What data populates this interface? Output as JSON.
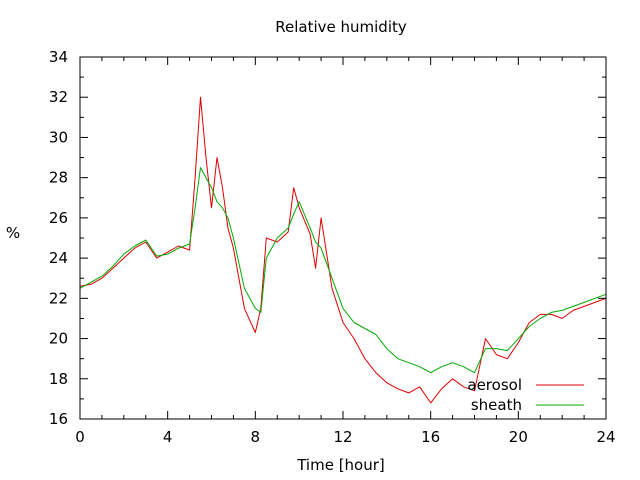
{
  "chart_data": {
    "type": "line",
    "title": "Relative humidity",
    "xlabel": "Time [hour]",
    "ylabel": "%",
    "xlim": [
      0,
      24
    ],
    "ylim": [
      16,
      34
    ],
    "xticks": [
      0,
      4,
      8,
      12,
      16,
      20,
      24
    ],
    "yticks": [
      16,
      18,
      20,
      22,
      24,
      26,
      28,
      30,
      32,
      34
    ],
    "grid": false,
    "legend_position": "bottom-right",
    "series": [
      {
        "name": "aerosol",
        "color": "#dd0000",
        "x": [
          0,
          0.5,
          1,
          1.5,
          2,
          2.5,
          3,
          3.5,
          4,
          4.5,
          5,
          5.25,
          5.5,
          5.75,
          6,
          6.25,
          6.5,
          6.75,
          7,
          7.5,
          8,
          8.25,
          8.5,
          9,
          9.5,
          9.75,
          10,
          10.5,
          10.75,
          11,
          11.5,
          12,
          12.5,
          13,
          13.5,
          14,
          14.5,
          15,
          15.5,
          16,
          16.5,
          17,
          17.5,
          18,
          18.5,
          19,
          19.5,
          20,
          20.5,
          21,
          21.5,
          22,
          22.5,
          23,
          23.5,
          24
        ],
        "y": [
          22.6,
          22.7,
          23.0,
          23.5,
          24.0,
          24.5,
          24.8,
          24.0,
          24.3,
          24.6,
          24.4,
          28.0,
          32.0,
          29.0,
          26.5,
          29.0,
          27.5,
          25.5,
          24.5,
          21.5,
          20.3,
          21.5,
          25.0,
          24.8,
          25.3,
          27.5,
          26.5,
          25.2,
          23.5,
          26.0,
          22.5,
          20.8,
          20.0,
          19.0,
          18.3,
          17.8,
          17.5,
          17.3,
          17.6,
          16.8,
          17.5,
          18.0,
          17.6,
          17.4,
          20.0,
          19.2,
          19.0,
          19.8,
          20.8,
          21.2,
          21.2,
          21.0,
          21.4,
          21.6,
          21.8,
          22.0
        ]
      },
      {
        "name": "sheath",
        "color": "#00aa00",
        "x": [
          0,
          0.5,
          1,
          1.5,
          2,
          2.5,
          3,
          3.5,
          4,
          4.5,
          5,
          5.25,
          5.5,
          5.75,
          6,
          6.25,
          6.5,
          6.75,
          7,
          7.5,
          8,
          8.25,
          8.5,
          9,
          9.5,
          9.75,
          10,
          10.5,
          10.75,
          11,
          11.5,
          12,
          12.5,
          13,
          13.5,
          14,
          14.5,
          15,
          15.5,
          16,
          16.5,
          17,
          17.5,
          18,
          18.5,
          19,
          19.5,
          20,
          20.5,
          21,
          21.5,
          22,
          22.5,
          23,
          23.5,
          24
        ],
        "y": [
          22.5,
          22.8,
          23.1,
          23.6,
          24.2,
          24.6,
          24.9,
          24.1,
          24.2,
          24.5,
          24.7,
          26.5,
          28.5,
          28.0,
          27.5,
          26.8,
          26.5,
          26.0,
          25.0,
          22.5,
          21.5,
          21.3,
          24.0,
          25.0,
          25.5,
          26.2,
          26.8,
          25.5,
          24.8,
          24.5,
          23.0,
          21.5,
          20.8,
          20.5,
          20.2,
          19.5,
          19.0,
          18.8,
          18.6,
          18.3,
          18.6,
          18.8,
          18.6,
          18.3,
          19.5,
          19.5,
          19.4,
          20.0,
          20.6,
          21.0,
          21.3,
          21.4,
          21.6,
          21.8,
          22.0,
          22.2
        ]
      }
    ]
  }
}
